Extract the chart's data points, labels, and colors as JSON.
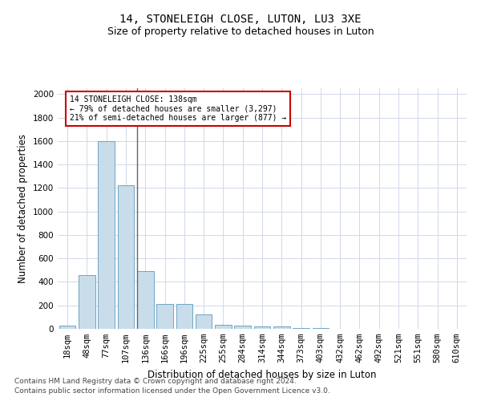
{
  "title1": "14, STONELEIGH CLOSE, LUTON, LU3 3XE",
  "title2": "Size of property relative to detached houses in Luton",
  "xlabel": "Distribution of detached houses by size in Luton",
  "ylabel": "Number of detached properties",
  "categories": [
    "18sqm",
    "48sqm",
    "77sqm",
    "107sqm",
    "136sqm",
    "166sqm",
    "196sqm",
    "225sqm",
    "255sqm",
    "284sqm",
    "314sqm",
    "344sqm",
    "373sqm",
    "403sqm",
    "432sqm",
    "462sqm",
    "492sqm",
    "521sqm",
    "551sqm",
    "580sqm",
    "610sqm"
  ],
  "values": [
    30,
    460,
    1600,
    1220,
    490,
    210,
    210,
    120,
    35,
    30,
    20,
    20,
    10,
    5,
    3,
    2,
    1,
    1,
    0,
    0,
    0
  ],
  "bar_color": "#c9dcea",
  "bar_edge_color": "#5b9abd",
  "highlight_index": 4,
  "highlight_line_color": "#666666",
  "annotation_text": "14 STONELEIGH CLOSE: 138sqm\n← 79% of detached houses are smaller (3,297)\n21% of semi-detached houses are larger (877) →",
  "annotation_box_color": "#ffffff",
  "annotation_box_edge_color": "#cc0000",
  "ylim": [
    0,
    2050
  ],
  "yticks": [
    0,
    200,
    400,
    600,
    800,
    1000,
    1200,
    1400,
    1600,
    1800,
    2000
  ],
  "footer1": "Contains HM Land Registry data © Crown copyright and database right 2024.",
  "footer2": "Contains public sector information licensed under the Open Government Licence v3.0.",
  "background_color": "#ffffff",
  "grid_color": "#d0d8e8",
  "title1_fontsize": 10,
  "title2_fontsize": 9,
  "axis_fontsize": 8.5,
  "tick_fontsize": 7.5,
  "footer_fontsize": 6.5
}
